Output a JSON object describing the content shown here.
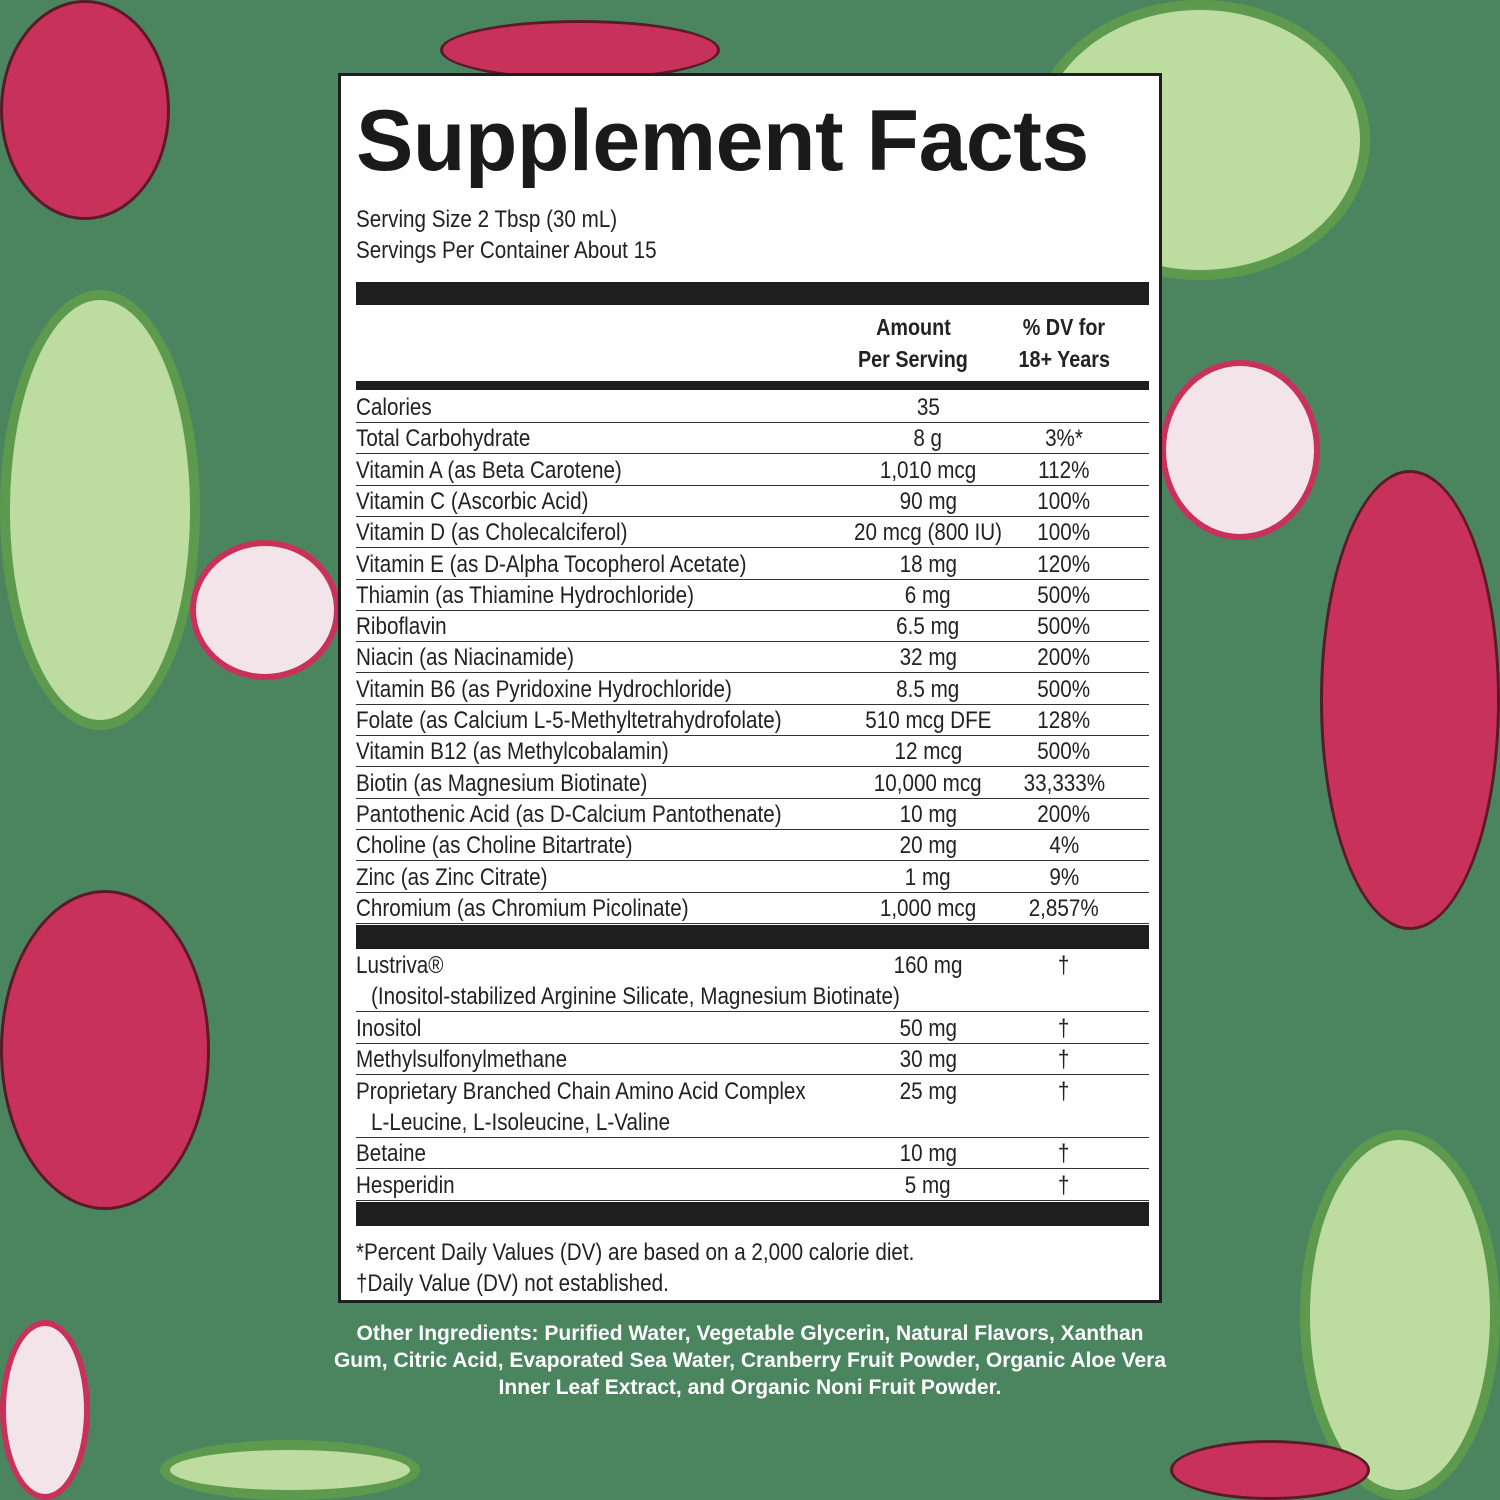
{
  "title": "Supplement Facts",
  "serving_size": "Serving Size 2 Tbsp (30 mL)",
  "servings_per_container": "Servings Per Container About 15",
  "header": {
    "amount_line1": "Amount",
    "amount_line2": "Per Serving",
    "dv_line1": "% DV for",
    "dv_line2": "18+ Years"
  },
  "nutrients": [
    {
      "name": "Calories",
      "amount": "35",
      "dv": ""
    },
    {
      "name": "Total Carbohydrate",
      "amount": "8 g",
      "dv": "3%*"
    },
    {
      "name": "Vitamin A (as Beta Carotene)",
      "amount": "1,010 mcg",
      "dv": "112%"
    },
    {
      "name": "Vitamin C (Ascorbic Acid)",
      "amount": "90 mg",
      "dv": "100%"
    },
    {
      "name": "Vitamin D (as Cholecalciferol)",
      "amount": "20 mcg (800 IU)",
      "dv": "100%"
    },
    {
      "name": "Vitamin E (as D-Alpha Tocopherol Acetate)",
      "amount": "18 mg",
      "dv": "120%"
    },
    {
      "name": "Thiamin (as Thiamine Hydrochloride)",
      "amount": "6 mg",
      "dv": "500%"
    },
    {
      "name": "Riboflavin",
      "amount": "6.5 mg",
      "dv": "500%"
    },
    {
      "name": "Niacin (as Niacinamide)",
      "amount": "32 mg",
      "dv": "200%"
    },
    {
      "name": "Vitamin B6 (as Pyridoxine Hydrochloride)",
      "amount": "8.5 mg",
      "dv": "500%"
    },
    {
      "name": "Folate (as Calcium L-5-Methyltetrahydrofolate)",
      "amount": "510 mcg DFE",
      "dv": "128%"
    },
    {
      "name": "Vitamin B12 (as Methylcobalamin)",
      "amount": "12 mcg",
      "dv": "500%"
    },
    {
      "name": "Biotin (as Magnesium Biotinate)",
      "amount": "10,000 mcg",
      "dv": "33,333%"
    },
    {
      "name": "Pantothenic Acid (as D-Calcium Pantothenate)",
      "amount": "10 mg",
      "dv": "200%"
    },
    {
      "name": "Choline (as Choline Bitartrate)",
      "amount": "20 mg",
      "dv": "4%"
    },
    {
      "name": "Zinc (as Zinc Citrate)",
      "amount": "1 mg",
      "dv": "9%"
    },
    {
      "name": "Chromium (as Chromium Picolinate)",
      "amount": "1,000 mcg",
      "dv": "2,857%"
    }
  ],
  "others": [
    {
      "name": "Lustriva®",
      "sub": "(Inositol-stabilized Arginine Silicate, Magnesium Biotinate)",
      "amount": "160 mg",
      "dv": "†"
    },
    {
      "name": "Inositol",
      "amount": "50 mg",
      "dv": "†"
    },
    {
      "name": "Methylsulfonylmethane",
      "amount": "30 mg",
      "dv": "†"
    },
    {
      "name": "Proprietary Branched Chain Amino Acid Complex",
      "sub": "L-Leucine, L-Isoleucine, L-Valine",
      "amount": "25 mg",
      "dv": "†"
    },
    {
      "name": "Betaine",
      "amount": "10 mg",
      "dv": "†"
    },
    {
      "name": "Hesperidin",
      "amount": "5 mg",
      "dv": "†"
    }
  ],
  "footnotes": [
    "*Percent Daily Values (DV) are based on a 2,000 calorie diet.",
    "†Daily Value (DV) not established."
  ],
  "other_ingredients": "Other Ingredients: Purified Water, Vegetable Glycerin, Natural Flavors, Xanthan Gum, Citric Acid, Evaporated Sea Water, Cranberry Fruit Powder, Organic Aloe Vera Inner Leaf Extract, and Organic Noni Fruit Powder.",
  "colors": {
    "background": "#4b8560",
    "label_bg": "#ffffff",
    "ink": "#1e1e1e"
  }
}
